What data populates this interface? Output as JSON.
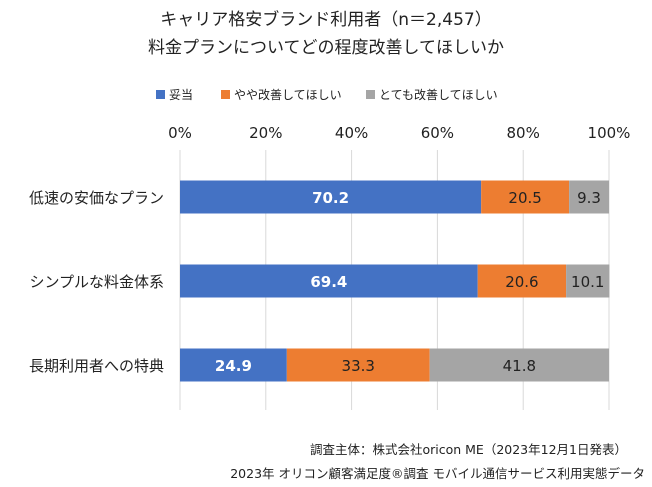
{
  "chart_data": {
    "type": "bar",
    "orientation": "horizontal",
    "stacked": true,
    "title": "キャリア格安ブランド利用者（n＝2,457）",
    "subtitle": "料金プランについてどの程度改善してほしいか",
    "categories": [
      "低速の安価なプラン",
      "シンプルな料金体系",
      "長期利用者への特典"
    ],
    "series": [
      {
        "name": "妥当",
        "color": "#4472C4",
        "label_color": "#ffffff",
        "bold": true,
        "values": [
          70.2,
          69.4,
          24.9
        ]
      },
      {
        "name": "やや改善してほしい",
        "color": "#ED7D31",
        "label_color": "#222222",
        "bold": false,
        "values": [
          20.5,
          20.6,
          33.3
        ]
      },
      {
        "name": "とても改善してほしい",
        "color": "#A5A5A5",
        "label_color": "#222222",
        "bold": false,
        "values": [
          9.3,
          10.1,
          41.8
        ]
      }
    ],
    "xaxis": {
      "ticks": [
        0,
        20,
        40,
        60,
        80,
        100
      ],
      "tick_labels": [
        "0%",
        "20%",
        "40%",
        "60%",
        "80%",
        "100%"
      ],
      "xlim": [
        0,
        100
      ],
      "position": "top"
    },
    "grid": true,
    "legend": "top"
  },
  "notes": {
    "source": "調査主体：株式会社oricon ME（2023年12月1日発表）",
    "survey": "2023年 オリコン顧客満足度®調査 モバイル通信サービス利用実態データ"
  }
}
